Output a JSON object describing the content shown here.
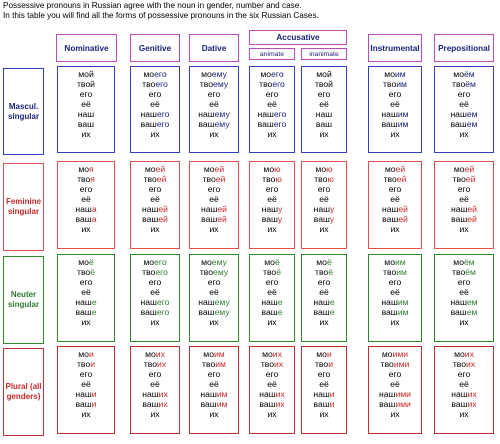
{
  "intro": {
    "line1": "Possessive pronouns in Russian agree with the noun in gender, number and case.",
    "line2_prefix": "In this table you will find all the forms of possessive pronouns in the six Russian Cases."
  },
  "columns": [
    "Nominative",
    "Genitive",
    "Dative",
    "Accusative",
    "Instrumental",
    "Prepositional"
  ],
  "accusative_sub": [
    "animate",
    "inanimate"
  ],
  "rows": [
    {
      "label": "Mascul. singular",
      "key": "m",
      "cells": [
        [
          [
            "мой",
            ""
          ],
          [
            "твой",
            ""
          ],
          [
            "его",
            ""
          ],
          [
            "её",
            ""
          ],
          [
            "наш",
            ""
          ],
          [
            "ваш",
            ""
          ],
          [
            "их",
            ""
          ]
        ],
        [
          [
            "мо",
            "его"
          ],
          [
            "тво",
            "его"
          ],
          [
            "его",
            ""
          ],
          [
            "её",
            ""
          ],
          [
            "наш",
            "его"
          ],
          [
            "ваш",
            "его"
          ],
          [
            "их",
            ""
          ]
        ],
        [
          [
            "мо",
            "ему"
          ],
          [
            "тво",
            "ему"
          ],
          [
            "его",
            ""
          ],
          [
            "её",
            ""
          ],
          [
            "наш",
            "ему"
          ],
          [
            "ваш",
            "ему"
          ],
          [
            "их",
            ""
          ]
        ],
        [
          [
            "мо",
            "его"
          ],
          [
            "тво",
            "его"
          ],
          [
            "его",
            ""
          ],
          [
            "её",
            ""
          ],
          [
            "наш",
            "его"
          ],
          [
            "ваш",
            "его"
          ],
          [
            "их",
            ""
          ]
        ],
        [
          [
            "мой",
            ""
          ],
          [
            "твой",
            ""
          ],
          [
            "его",
            ""
          ],
          [
            "её",
            ""
          ],
          [
            "наш",
            ""
          ],
          [
            "ваш",
            ""
          ],
          [
            "их",
            ""
          ]
        ],
        [
          [
            "мо",
            "им"
          ],
          [
            "тво",
            "им"
          ],
          [
            "его",
            ""
          ],
          [
            "её",
            ""
          ],
          [
            "наш",
            "им"
          ],
          [
            "ваш",
            "им"
          ],
          [
            "их",
            ""
          ]
        ],
        [
          [
            "мо",
            "ём"
          ],
          [
            "тво",
            "ём"
          ],
          [
            "его",
            ""
          ],
          [
            "её",
            ""
          ],
          [
            "наш",
            "ем"
          ],
          [
            "ваш",
            "ем"
          ],
          [
            "их",
            ""
          ]
        ]
      ]
    },
    {
      "label": "Feminine singular",
      "key": "f",
      "cells": [
        [
          [
            "мо",
            "я"
          ],
          [
            "тво",
            "я"
          ],
          [
            "его",
            ""
          ],
          [
            "её",
            ""
          ],
          [
            "наш",
            "а"
          ],
          [
            "ваш",
            "а"
          ],
          [
            "их",
            ""
          ]
        ],
        [
          [
            "мо",
            "ей"
          ],
          [
            "тво",
            "ей"
          ],
          [
            "его",
            ""
          ],
          [
            "её",
            ""
          ],
          [
            "наш",
            "ей"
          ],
          [
            "ваш",
            "ей"
          ],
          [
            "их",
            ""
          ]
        ],
        [
          [
            "мо",
            "ей"
          ],
          [
            "тво",
            "ей"
          ],
          [
            "его",
            ""
          ],
          [
            "её",
            ""
          ],
          [
            "наш",
            "ей"
          ],
          [
            "ваш",
            "ей"
          ],
          [
            "их",
            ""
          ]
        ],
        [
          [
            "мо",
            "ю"
          ],
          [
            "тво",
            "ю"
          ],
          [
            "его",
            ""
          ],
          [
            "её",
            ""
          ],
          [
            "наш",
            "у"
          ],
          [
            "ваш",
            "у"
          ],
          [
            "их",
            ""
          ]
        ],
        [
          [
            "мо",
            "ю"
          ],
          [
            "тво",
            "ю"
          ],
          [
            "его",
            ""
          ],
          [
            "её",
            ""
          ],
          [
            "наш",
            "у"
          ],
          [
            "ваш",
            "у"
          ],
          [
            "их",
            ""
          ]
        ],
        [
          [
            "мо",
            "ей"
          ],
          [
            "тво",
            "ей"
          ],
          [
            "его",
            ""
          ],
          [
            "её",
            ""
          ],
          [
            "наш",
            "ей"
          ],
          [
            "ваш",
            "ей"
          ],
          [
            "их",
            ""
          ]
        ],
        [
          [
            "мо",
            "ей"
          ],
          [
            "тво",
            "ей"
          ],
          [
            "его",
            ""
          ],
          [
            "её",
            ""
          ],
          [
            "наш",
            "ей"
          ],
          [
            "ваш",
            "ей"
          ],
          [
            "их",
            ""
          ]
        ]
      ]
    },
    {
      "label": "Neuter singular",
      "key": "n",
      "cells": [
        [
          [
            "мо",
            "ё"
          ],
          [
            "тво",
            "ё"
          ],
          [
            "его",
            ""
          ],
          [
            "её",
            ""
          ],
          [
            "наш",
            "е"
          ],
          [
            "ваш",
            "е"
          ],
          [
            "их",
            ""
          ]
        ],
        [
          [
            "мо",
            "его"
          ],
          [
            "тво",
            "его"
          ],
          [
            "его",
            ""
          ],
          [
            "её",
            ""
          ],
          [
            "наш",
            "его"
          ],
          [
            "ваш",
            "его"
          ],
          [
            "их",
            ""
          ]
        ],
        [
          [
            "мо",
            "ему"
          ],
          [
            "тво",
            "ему"
          ],
          [
            "его",
            ""
          ],
          [
            "её",
            ""
          ],
          [
            "наш",
            "ему"
          ],
          [
            "ваш",
            "ему"
          ],
          [
            "их",
            ""
          ]
        ],
        [
          [
            "мо",
            "ё"
          ],
          [
            "тво",
            "ё"
          ],
          [
            "его",
            ""
          ],
          [
            "её",
            ""
          ],
          [
            "наш",
            "е"
          ],
          [
            "ваш",
            "е"
          ],
          [
            "их",
            ""
          ]
        ],
        [
          [
            "мо",
            "ё"
          ],
          [
            "тво",
            "ё"
          ],
          [
            "его",
            ""
          ],
          [
            "её",
            ""
          ],
          [
            "наш",
            "е"
          ],
          [
            "ваш",
            "е"
          ],
          [
            "их",
            ""
          ]
        ],
        [
          [
            "мо",
            "им"
          ],
          [
            "тво",
            "им"
          ],
          [
            "его",
            ""
          ],
          [
            "её",
            ""
          ],
          [
            "наш",
            "им"
          ],
          [
            "ваш",
            "им"
          ],
          [
            "их",
            ""
          ]
        ],
        [
          [
            "мо",
            "ём"
          ],
          [
            "тво",
            "ём"
          ],
          [
            "его",
            ""
          ],
          [
            "её",
            ""
          ],
          [
            "наш",
            "ем"
          ],
          [
            "ваш",
            "ем"
          ],
          [
            "их",
            ""
          ]
        ]
      ]
    },
    {
      "label": "Plural (all genders)",
      "key": "p",
      "cells": [
        [
          [
            "мо",
            "и"
          ],
          [
            "тво",
            "и"
          ],
          [
            "его",
            ""
          ],
          [
            "её",
            ""
          ],
          [
            "наш",
            "и"
          ],
          [
            "ваш",
            "и"
          ],
          [
            "их",
            ""
          ]
        ],
        [
          [
            "мо",
            "их"
          ],
          [
            "тво",
            "их"
          ],
          [
            "его",
            ""
          ],
          [
            "её",
            ""
          ],
          [
            "наш",
            "их"
          ],
          [
            "ваш",
            "их"
          ],
          [
            "их",
            ""
          ]
        ],
        [
          [
            "мо",
            "им"
          ],
          [
            "тво",
            "им"
          ],
          [
            "его",
            ""
          ],
          [
            "её",
            ""
          ],
          [
            "наш",
            "им"
          ],
          [
            "ваш",
            "им"
          ],
          [
            "их",
            ""
          ]
        ],
        [
          [
            "мо",
            "их"
          ],
          [
            "тво",
            "их"
          ],
          [
            "его",
            ""
          ],
          [
            "её",
            ""
          ],
          [
            "наш",
            "их"
          ],
          [
            "ваш",
            "их"
          ],
          [
            "их",
            ""
          ]
        ],
        [
          [
            "мо",
            "и"
          ],
          [
            "тво",
            "и"
          ],
          [
            "его",
            ""
          ],
          [
            "её",
            ""
          ],
          [
            "наш",
            "и"
          ],
          [
            "ваш",
            "и"
          ],
          [
            "их",
            ""
          ]
        ],
        [
          [
            "мо",
            "ими"
          ],
          [
            "тво",
            "ими"
          ],
          [
            "его",
            ""
          ],
          [
            "её",
            ""
          ],
          [
            "наш",
            "ими"
          ],
          [
            "ваш",
            "ими"
          ],
          [
            "их",
            ""
          ]
        ],
        [
          [
            "мо",
            "их"
          ],
          [
            "тво",
            "их"
          ],
          [
            "его",
            ""
          ],
          [
            "её",
            ""
          ],
          [
            "наш",
            "их"
          ],
          [
            "ваш",
            "их"
          ],
          [
            "их",
            ""
          ]
        ]
      ]
    }
  ],
  "colors": {
    "m": "#1a237e",
    "f": "#c62828",
    "n": "#2e7d32",
    "p": "#c62828",
    "m_border": "#3040c0",
    "f_border": "#e05050",
    "n_border": "#2e8b2e",
    "p_border": "#c03030",
    "header_border": "#c04ac0"
  }
}
